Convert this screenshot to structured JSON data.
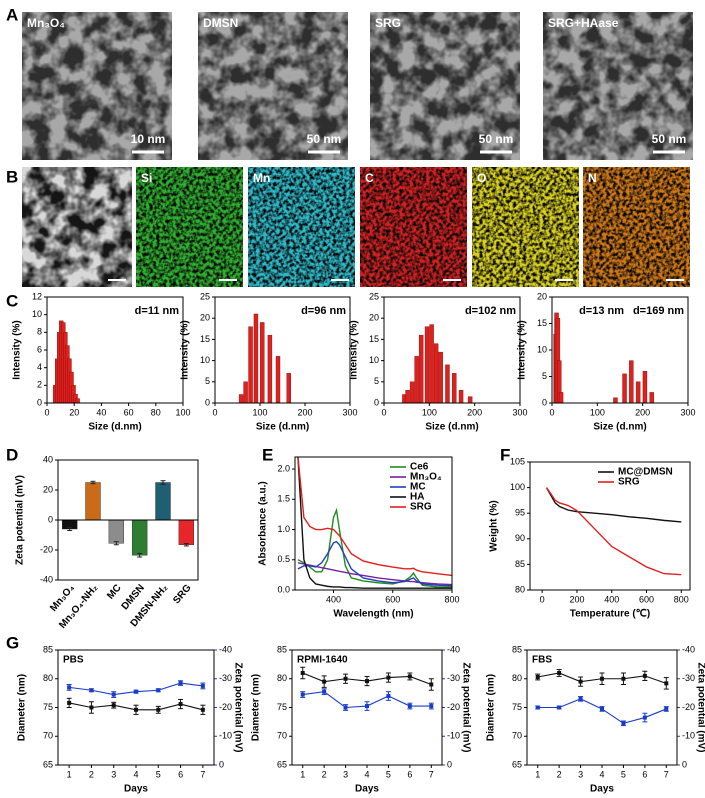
{
  "panel_labels": [
    "A",
    "B",
    "C",
    "D",
    "E",
    "F",
    "G"
  ],
  "tem_images": [
    {
      "label": "Mn₃O₄",
      "scale_bar": "10 nm"
    },
    {
      "label": "DMSN",
      "scale_bar": "50 nm"
    },
    {
      "label": "SRG",
      "scale_bar": "50 nm"
    },
    {
      "label": "SRG+HAase",
      "scale_bar": "50 nm"
    }
  ],
  "eds_maps": [
    {
      "label": "Si",
      "color": "#2fb02f"
    },
    {
      "label": "Mn",
      "color": "#2fb8c8"
    },
    {
      "label": "C",
      "color": "#d02020"
    },
    {
      "label": "O",
      "color": "#d8d020"
    },
    {
      "label": "N",
      "color": "#d07818"
    }
  ],
  "chart_data": [
    {
      "type": "bar",
      "x": [
        6,
        7.5,
        9,
        10.5,
        12,
        13.5,
        15,
        16.5,
        18,
        19.5,
        21,
        22.5
      ],
      "values": [
        2,
        5,
        8,
        9.3,
        9.1,
        8,
        6.5,
        5,
        3.5,
        2,
        1,
        0.5
      ],
      "color": "#e0201c",
      "xlim": [
        0,
        100
      ],
      "xticks": [
        0,
        20,
        40,
        60,
        80,
        100
      ],
      "ylim": [
        0,
        12
      ],
      "yticks": [
        0,
        2,
        4,
        6,
        8,
        10,
        12
      ],
      "xlabel": "Size (d.nm)",
      "ylabel": "Intensity (%)",
      "annotations": [
        "d=11 nm"
      ]
    },
    {
      "type": "bar",
      "x": [
        58,
        68,
        79,
        91,
        105,
        122,
        140,
        164
      ],
      "values": [
        2,
        5,
        18,
        21,
        19,
        16,
        11,
        7
      ],
      "color": "#e0201c",
      "xlim": [
        0,
        300
      ],
      "xticks": [
        0,
        100,
        200,
        300
      ],
      "ylim": [
        0,
        25
      ],
      "yticks": [
        0,
        5,
        10,
        15,
        20,
        25
      ],
      "xlabel": "Size (d.nm)",
      "ylabel": "Intensity (%)",
      "annotations": [
        "d=96 nm"
      ]
    },
    {
      "type": "bar",
      "x": [
        45,
        52,
        62,
        72,
        82,
        95,
        105,
        115,
        125,
        140,
        155,
        170,
        190
      ],
      "values": [
        2,
        3,
        5,
        11,
        16,
        18,
        18.5,
        14,
        12,
        9,
        7,
        3,
        1.5
      ],
      "color": "#e0201c",
      "xlim": [
        0,
        300
      ],
      "xticks": [
        0,
        100,
        200,
        300
      ],
      "ylim": [
        0,
        25
      ],
      "yticks": [
        0,
        5,
        10,
        15,
        20,
        25
      ],
      "xlabel": "Size (d.nm)",
      "ylabel": "Intensity (%)",
      "annotations": [
        "d=102 nm"
      ]
    },
    {
      "type": "bar",
      "x": [
        8,
        10,
        13,
        16,
        20,
        140,
        160,
        175,
        190,
        205,
        220
      ],
      "values": [
        13,
        17,
        16,
        8,
        2,
        1,
        5.5,
        8,
        4,
        6,
        2
      ],
      "color": "#e0201c",
      "xlim": [
        0,
        300
      ],
      "xticks": [
        0,
        100,
        200,
        300
      ],
      "ylim": [
        0,
        20
      ],
      "yticks": [
        0,
        5,
        10,
        15,
        20
      ],
      "xlabel": "Size (d.nm)",
      "ylabel": "Intensity (%)",
      "annotations": [
        "d=13 nm",
        "d=169 nm"
      ]
    },
    {
      "type": "bar",
      "categories": [
        "Mn₃O₄",
        "Mn₃O₄-NH₂",
        "MC",
        "DMSN",
        "DMSN-NH₂",
        "SRG"
      ],
      "values": [
        -6,
        25,
        -15.5,
        -23.5,
        25,
        -16.5
      ],
      "errors": [
        1,
        0.8,
        1,
        1.2,
        1.2,
        0.8
      ],
      "colors": [
        "#111111",
        "#cc6b17",
        "#8c8c8c",
        "#2e7d32",
        "#1f5f73",
        "#e8262a"
      ],
      "ylim": [
        -40,
        40
      ],
      "yticks": [
        -40,
        -20,
        0,
        20,
        40
      ],
      "ylabel": "Zeta potential (mV)"
    },
    {
      "type": "line",
      "x": [
        280,
        300,
        320,
        340,
        360,
        380,
        400,
        410,
        420,
        440,
        460,
        500,
        550,
        600,
        640,
        660,
        670,
        680,
        700,
        750,
        800
      ],
      "series": [
        {
          "name": "Ce6",
          "color": "#1e8c1e",
          "values": [
            0.5,
            0.45,
            0.38,
            0.3,
            0.3,
            0.5,
            1.2,
            1.32,
            1.0,
            0.4,
            0.2,
            0.15,
            0.12,
            0.1,
            0.15,
            0.22,
            0.28,
            0.2,
            0.08,
            0.05,
            0.05
          ]
        },
        {
          "name": "Mn₃O₄",
          "color": "#7a1fa2",
          "values": [
            0.45,
            0.43,
            0.41,
            0.39,
            0.37,
            0.35,
            0.33,
            0.32,
            0.31,
            0.29,
            0.27,
            0.24,
            0.2,
            0.17,
            0.15,
            0.14,
            0.14,
            0.13,
            0.12,
            0.1,
            0.09
          ]
        },
        {
          "name": "MC",
          "color": "#1f3fbf",
          "values": [
            0.35,
            0.4,
            0.4,
            0.38,
            0.45,
            0.6,
            0.78,
            0.8,
            0.75,
            0.55,
            0.35,
            0.2,
            0.15,
            0.12,
            0.14,
            0.18,
            0.2,
            0.15,
            0.1,
            0.08,
            0.07
          ]
        },
        {
          "name": "HA",
          "color": "#111111",
          "values": [
            2.2,
            0.5,
            0.2,
            0.1,
            0.08,
            0.06,
            0.05,
            0.05,
            0.05,
            0.04,
            0.04,
            0.03,
            0.03,
            0.03,
            0.03,
            0.03,
            0.03,
            0.03,
            0.03,
            0.03,
            0.03
          ]
        },
        {
          "name": "SRG",
          "color": "#e0201c",
          "values": [
            2.2,
            1.2,
            1.05,
            1.0,
            1.0,
            1.02,
            1.0,
            0.95,
            0.9,
            0.75,
            0.6,
            0.48,
            0.42,
            0.38,
            0.35,
            0.35,
            0.36,
            0.33,
            0.3,
            0.27,
            0.24
          ]
        }
      ],
      "xlim": [
        270,
        800
      ],
      "xticks": [
        400,
        600,
        800
      ],
      "ylim": [
        0,
        2.2
      ],
      "yticks": [
        {
          "value": 0,
          "label": "0.0"
        },
        0.5,
        {
          "value": 1,
          "label": "1.0"
        },
        1.5,
        {
          "value": 2,
          "label": "2.0"
        }
      ],
      "xlabel": "Wavelength (nm)",
      "ylabel": "Absorbance (a.u.)",
      "legend": "upper right"
    },
    {
      "type": "line",
      "x": [
        25,
        50,
        75,
        100,
        150,
        200,
        300,
        400,
        500,
        600,
        700,
        800
      ],
      "series": [
        {
          "name": "MC@DMSN",
          "color": "#111111",
          "values": [
            100,
            98.5,
            97,
            96.3,
            95.6,
            95.3,
            95,
            94.7,
            94.3,
            94,
            93.6,
            93.3
          ]
        },
        {
          "name": "SRG",
          "color": "#e0201c",
          "values": [
            100,
            98.8,
            97.5,
            97,
            96.5,
            95.5,
            92,
            88.5,
            86.5,
            84.5,
            83.2,
            83
          ]
        }
      ],
      "xlim": [
        -70,
        850
      ],
      "xticks": [
        0,
        200,
        400,
        600,
        800
      ],
      "ylim": [
        80,
        105
      ],
      "yticks": [
        80,
        85,
        90,
        95,
        100,
        105
      ],
      "xlabel": "Temperature (℃)",
      "ylabel": "Weight (%)",
      "legend": "upper right"
    },
    {
      "type": "line",
      "title": "PBS",
      "x": [
        1,
        2,
        3,
        4,
        5,
        6,
        7
      ],
      "markers": true,
      "series": [
        {
          "color": "#111111",
          "values": [
            75.8,
            75,
            75.4,
            74.6,
            74.6,
            75.6,
            74.6
          ],
          "errors": [
            0.8,
            1,
            0.5,
            0.8,
            0.6,
            0.8,
            0.8
          ]
        },
        {
          "color": "#1a3cc8",
          "axis": "y2",
          "values": [
            -27,
            -26,
            -24.5,
            -25.5,
            -26,
            -28.5,
            -27.5
          ],
          "errors": [
            1,
            0.5,
            1,
            0.5,
            0.5,
            0.8,
            1
          ]
        }
      ],
      "xlim": [
        0.5,
        7.5
      ],
      "xticks": [
        1,
        2,
        3,
        4,
        5,
        6,
        7
      ],
      "ylim": [
        65,
        85
      ],
      "yticks": [
        65,
        70,
        75,
        80,
        85
      ],
      "y2lim": [
        0,
        -40
      ],
      "y2ticks": [
        0,
        -10,
        -20,
        -30,
        -40
      ],
      "xlabel": "Days",
      "ylabel": "Diameter (nm)",
      "y2label": "Zeta potential (mV)"
    },
    {
      "type": "line",
      "title": "RPMI-1640",
      "x": [
        1,
        2,
        3,
        4,
        5,
        6,
        7
      ],
      "markers": true,
      "series": [
        {
          "color": "#111111",
          "values": [
            81,
            79.5,
            80,
            79.6,
            80.2,
            80.4,
            79
          ],
          "errors": [
            1,
            1,
            0.8,
            0.8,
            0.8,
            0.6,
            1
          ]
        },
        {
          "color": "#1a3cc8",
          "axis": "y2",
          "values": [
            -24.5,
            -25.5,
            -20,
            -20.5,
            -24,
            -20.5,
            -20.5
          ],
          "errors": [
            1,
            1,
            1,
            1.5,
            1.5,
            1,
            1
          ]
        }
      ],
      "xlim": [
        0.5,
        7.5
      ],
      "xticks": [
        1,
        2,
        3,
        4,
        5,
        6,
        7
      ],
      "ylim": [
        65,
        85
      ],
      "yticks": [
        65,
        70,
        75,
        80,
        85
      ],
      "y2lim": [
        0,
        -40
      ],
      "y2ticks": [
        0,
        -10,
        -20,
        -30,
        -40
      ],
      "xlabel": "Days",
      "ylabel": "Diameter (nm)",
      "y2label": "Zeta potential (mV)"
    },
    {
      "type": "line",
      "title": "FBS",
      "x": [
        1,
        2,
        3,
        4,
        5,
        6,
        7
      ],
      "markers": true,
      "series": [
        {
          "color": "#111111",
          "values": [
            80.3,
            81,
            79.5,
            80,
            80,
            80.5,
            79.2
          ],
          "errors": [
            0.5,
            0.6,
            0.8,
            1,
            1,
            0.8,
            1
          ]
        },
        {
          "color": "#1a3cc8",
          "axis": "y2",
          "values": [
            -20,
            -20,
            -23,
            -19.5,
            -14.5,
            -16.5,
            -19.5
          ],
          "errors": [
            0.5,
            0.5,
            0.8,
            0.8,
            0.8,
            1.5,
            0.8
          ]
        }
      ],
      "xlim": [
        0.5,
        7.5
      ],
      "xticks": [
        1,
        2,
        3,
        4,
        5,
        6,
        7
      ],
      "ylim": [
        65,
        85
      ],
      "yticks": [
        65,
        70,
        75,
        80,
        85
      ],
      "y2lim": [
        0,
        -40
      ],
      "y2ticks": [
        0,
        -10,
        -20,
        -30,
        -40
      ],
      "xlabel": "Days",
      "ylabel": "Diameter (nm)",
      "y2label": "Zeta potential (mV)"
    }
  ]
}
